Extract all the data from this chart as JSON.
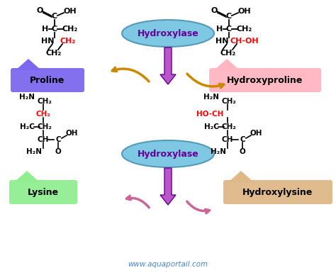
{
  "bg_color": "#ffffff",
  "hydroxylase_ellipse_color": "#7ec8e3",
  "hydroxylase_text": "Hydroxylase",
  "proline_label": "Proline",
  "hydroxyproline_label": "Hydroxyproline",
  "lysine_label": "Lysine",
  "hydroxylysine_label": "Hydroxylysine",
  "proline_box_color": "#7b68ee",
  "hydroxyproline_box_color": "#ffb6c1",
  "lysine_box_color": "#90ee90",
  "hydroxylysine_box_color": "#deb887",
  "red_color": "#ff0000",
  "black_color": "#000000",
  "arrow_purple": "#bb55cc",
  "arrow_orange": "#cc8800",
  "arrow_pink": "#cc6699",
  "website": "www.aquaportail.com",
  "website_color": "#4488cc"
}
